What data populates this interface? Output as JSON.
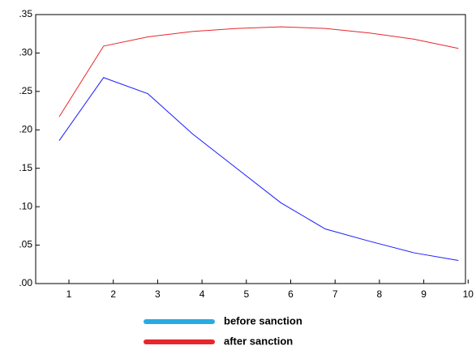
{
  "chart_data": {
    "type": "line",
    "categories": [
      "1",
      "2",
      "3",
      "4",
      "5",
      "6",
      "7",
      "8",
      "9",
      "10"
    ],
    "series": [
      {
        "name": "before sanction",
        "color": "#1a1aff",
        "legend_color": "#29abe2",
        "values": [
          0.186,
          0.268,
          0.247,
          0.195,
          0.15,
          0.105,
          0.071,
          0.055,
          0.04,
          0.03
        ]
      },
      {
        "name": "after sanction",
        "color": "#e8262d",
        "legend_color": "#e8262d",
        "values": [
          0.217,
          0.309,
          0.321,
          0.328,
          0.332,
          0.334,
          0.332,
          0.326,
          0.318,
          0.306
        ]
      }
    ],
    "ylim": [
      0,
      0.35
    ],
    "yticks": [
      {
        "value": 0,
        "label": ".00"
      },
      {
        "value": 0.05,
        "label": ".05"
      },
      {
        "value": 0.1,
        "label": ".10"
      },
      {
        "value": 0.15,
        "label": ".15"
      },
      {
        "value": 0.2,
        "label": ".20"
      },
      {
        "value": 0.25,
        "label": ".25"
      },
      {
        "value": 0.3,
        "label": ".30"
      },
      {
        "value": 0.35,
        "label": ".35"
      }
    ],
    "grid": false
  }
}
